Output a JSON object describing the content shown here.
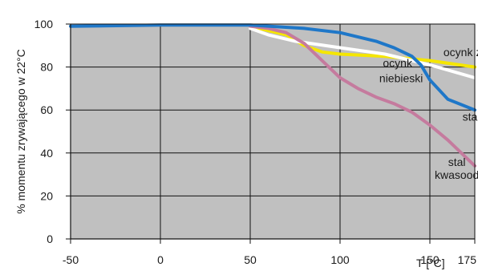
{
  "chart_data": {
    "type": "line",
    "title": "",
    "xlabel": "T [°C]",
    "ylabel": "% momentu zrywającego w 22°C",
    "xlim": [
      -50,
      175
    ],
    "ylim": [
      0,
      100
    ],
    "x_ticks": [
      -50,
      0,
      50,
      100,
      150,
      175
    ],
    "x_tick_labels": [
      "-50",
      "0",
      "50",
      "100",
      "150",
      "175"
    ],
    "y_ticks": [
      0,
      20,
      40,
      60,
      80,
      100
    ],
    "y_tick_labels": [
      "0",
      "20",
      "40",
      "60",
      "80",
      "100"
    ],
    "grid": true,
    "background": "#c0c0c0",
    "series": [
      {
        "name": "ocynk żółty",
        "color": "#f5e600",
        "x": [
          50,
          70,
          80,
          90,
          100,
          125,
          150,
          175
        ],
        "y": [
          99,
          95,
          90,
          87,
          86,
          85,
          83,
          80
        ]
      },
      {
        "name": "ocynk niebieski",
        "color": "#ffffff",
        "x": [
          50,
          60,
          75,
          100,
          125,
          150,
          175
        ],
        "y": [
          98,
          95,
          92,
          89,
          86,
          81,
          75
        ]
      },
      {
        "name": "stal",
        "color": "#1f77c8",
        "x": [
          -50,
          0,
          50,
          80,
          100,
          120,
          130,
          140,
          145,
          150,
          160,
          175
        ],
        "y": [
          99,
          99.5,
          99.5,
          98,
          96,
          92,
          89,
          85,
          81,
          74,
          65,
          60
        ]
      },
      {
        "name": "stal kwasoodporna",
        "color": "#c57b9e",
        "x": [
          50,
          60,
          70,
          80,
          90,
          100,
          110,
          120,
          130,
          140,
          150,
          160,
          175
        ],
        "y": [
          99,
          98,
          96,
          91,
          83,
          75,
          70,
          66,
          63,
          59,
          53,
          46,
          34
        ]
      }
    ],
    "annotations": [
      {
        "text": "ocynk żółty",
        "x": 173,
        "y": 85
      },
      {
        "text": "ocynk",
        "x": 132,
        "y": 80
      },
      {
        "text": "niebieski",
        "x": 134,
        "y": 73
      },
      {
        "text": "stal",
        "x": 173,
        "y": 55
      },
      {
        "text": "stal",
        "x": 165,
        "y": 34
      },
      {
        "text": "kwasoodporna",
        "x": 173,
        "y": 28
      }
    ]
  }
}
